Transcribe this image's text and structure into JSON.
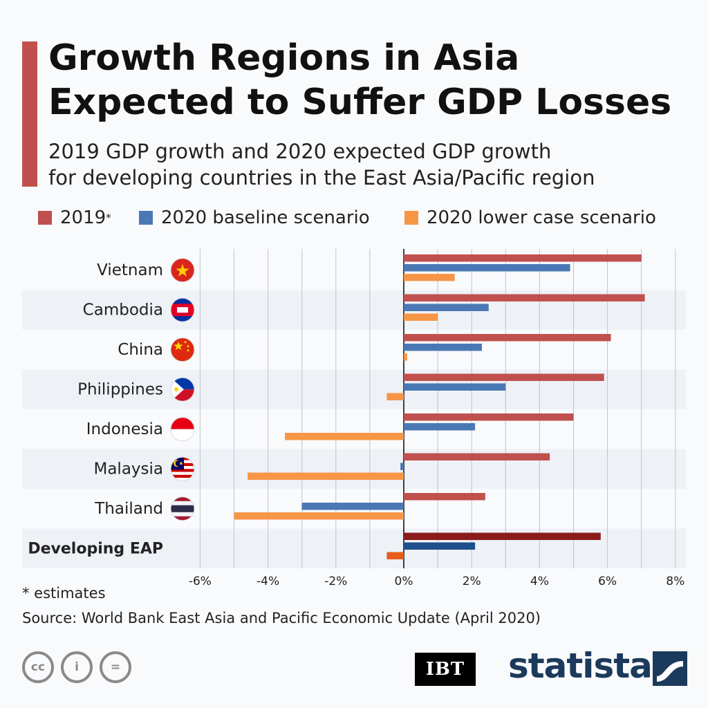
{
  "header": {
    "title": "Growth Regions in Asia Expected to Suffer GDP Losses",
    "subtitle_line1": "2019 GDP growth and 2020 expected GDP growth",
    "subtitle_line2": "for developing countries in the East Asia/Pacific region"
  },
  "legend": {
    "item_2019": "2019",
    "item_2019_mark": "*",
    "item_baseline": "2020 baseline scenario",
    "item_lower": "2020 lower case scenario"
  },
  "colors": {
    "s2019": "#c0504d",
    "baseline": "#4a78b5",
    "lower": "#f79646",
    "eap_2019": "#8b1a1a",
    "eap_baseline": "#1f4e8c",
    "eap_lower": "#e85d1a",
    "band": "#eef1f6",
    "accent": "#c0504d"
  },
  "chart_data": {
    "type": "bar",
    "orientation": "horizontal",
    "categories": [
      "Vietnam",
      "Cambodia",
      "China",
      "Philippines",
      "Indonesia",
      "Malaysia",
      "Thailand",
      "Developing EAP"
    ],
    "series": [
      {
        "name": "2019*",
        "values": [
          7.0,
          7.1,
          6.1,
          5.9,
          5.0,
          4.3,
          2.4,
          5.8
        ]
      },
      {
        "name": "2020 baseline scenario",
        "values": [
          4.9,
          2.5,
          2.3,
          3.0,
          2.1,
          -0.1,
          -3.0,
          2.1
        ]
      },
      {
        "name": "2020 lower case scenario",
        "values": [
          1.5,
          1.0,
          0.1,
          -0.5,
          -3.5,
          -4.6,
          -5.0,
          -0.5
        ]
      }
    ],
    "xlim": [
      -6,
      8
    ],
    "x_ticks": [
      "-6%",
      "-4%",
      "-2%",
      "0%",
      "2%",
      "4%",
      "6%",
      "8%"
    ],
    "grid": true,
    "legend_position": "top"
  },
  "flags": [
    "vietnam",
    "cambodia",
    "china",
    "philippines",
    "indonesia",
    "malaysia",
    "thailand"
  ],
  "footer": {
    "footnote": "* estimates",
    "source": "Source: World Bank East Asia and Pacific Economic Update (April 2020)",
    "ibt_logo": "IBT",
    "statista_logo": "statista",
    "cc_label": "cc",
    "by_label": "i",
    "nd_label": "="
  }
}
